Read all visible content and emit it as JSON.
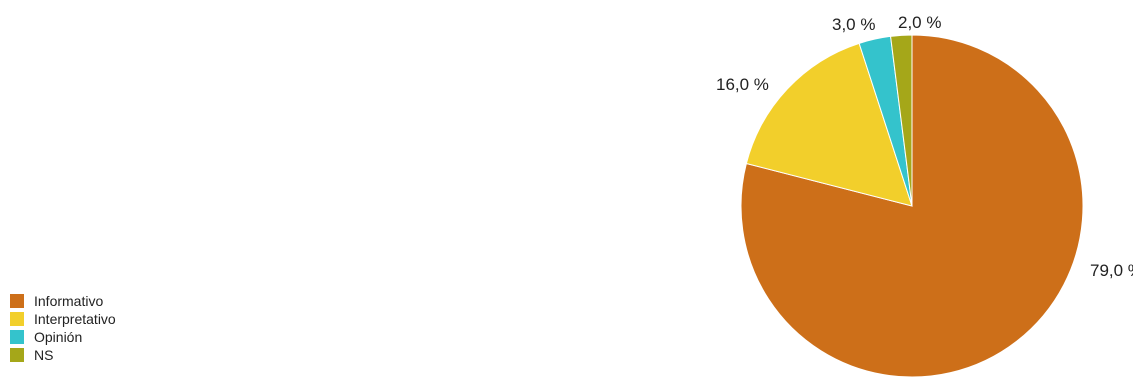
{
  "chart_data": {
    "type": "pie",
    "start_angle": "12 o'clock",
    "direction": "clockwise",
    "legend_position": "bottom-left",
    "slices": [
      {
        "name": "Informativo",
        "value": 79.0,
        "label": "79,0 %",
        "color": "#CD6F19"
      },
      {
        "name": "Interpretativo",
        "value": 16.0,
        "label": "16,0 %",
        "color": "#F2CF2B"
      },
      {
        "name": "Opinión",
        "value": 3.0,
        "label": "3,0 %",
        "color": "#34C3CC"
      },
      {
        "name": "NS",
        "value": 2.0,
        "label": "2,0 %",
        "color": "#A5A719"
      }
    ]
  }
}
